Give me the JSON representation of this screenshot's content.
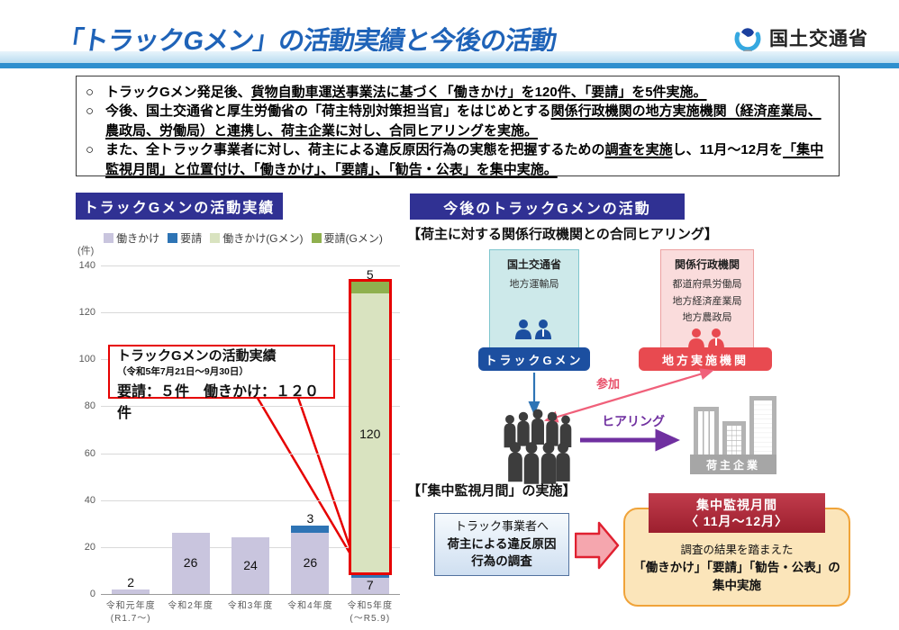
{
  "page": {
    "title": "「トラックGメン」の活動実績と今後の活動",
    "logo_text": "国土交通省"
  },
  "summary": {
    "bullets": [
      {
        "segments": [
          {
            "text": "トラックGメン発足後、",
            "u": false
          },
          {
            "text": "貨物自動車運送事業法に基づく「働きかけ」を120件、「要請」を5件実施。",
            "u": true
          }
        ]
      },
      {
        "segments": [
          {
            "text": "今後、国土交通省と厚生労働省の「荷主特別対策担当官」をはじめとする",
            "u": false
          },
          {
            "text": "関係行政機関の地方実施機関（経済産業局、農政局、労働局）と連携し、荷主企業に対し、合同ヒアリングを実施。",
            "u": true
          }
        ]
      },
      {
        "segments": [
          {
            "text": "また、全トラック事業者に対し、荷主による違反原因行為の実態を把握するための",
            "u": false
          },
          {
            "text": "調査を実施",
            "u": true
          },
          {
            "text": "し、11月～12月を",
            "u": false
          },
          {
            "text": "「集中監視月間」と位置付け、「働きかけ」、「要請」、「勧告・公表」を集中実施。",
            "u": true
          }
        ]
      }
    ]
  },
  "activity": {
    "header": "トラックGメンの活動実績",
    "unit": "(件)",
    "callout": {
      "title": "トラックGメンの活動実績",
      "period": "（令和5年7月21日～9月30日）",
      "stats": "要請：５件　働きかけ：１２０件"
    }
  },
  "chart_data": {
    "type": "bar",
    "stacked": true,
    "title": "トラックGメンの活動実績",
    "ylabel": "(件)",
    "ylim": [
      0,
      140
    ],
    "ytick_step": 20,
    "grid": true,
    "legend_position": "top",
    "categories": [
      {
        "label": "令和元年度",
        "sub": "(R1.7～)"
      },
      {
        "label": "令和2年度",
        "sub": ""
      },
      {
        "label": "令和3年度",
        "sub": ""
      },
      {
        "label": "令和4年度",
        "sub": ""
      },
      {
        "label": "令和5年度",
        "sub": "(～R5.9)"
      }
    ],
    "series": [
      {
        "name": "働きかけ",
        "color": "#c9c5de",
        "values": [
          2,
          26,
          24,
          26,
          7
        ]
      },
      {
        "name": "要請",
        "color": "#2e74b5",
        "values": [
          0,
          0,
          0,
          3,
          1
        ]
      },
      {
        "name": "働きかけ(Gメン)",
        "color": "#d9e3c0",
        "values": [
          0,
          0,
          0,
          0,
          120
        ]
      },
      {
        "name": "要請(Gメン)",
        "color": "#8fb04e",
        "values": [
          0,
          0,
          0,
          0,
          5
        ]
      }
    ],
    "highlight_note": "令和5年度のGメン分（働きかけ120件・要請5件）を赤枠で強調"
  },
  "future": {
    "header": "今後のトラックGメンの活動",
    "joint_hearing_heading": "【荷主に対する関係行政機関との合同ヒアリング】",
    "mlit_box": {
      "title": "国土交通省",
      "items": [
        "地方運輸局"
      ]
    },
    "related_box": {
      "title": "関係行政機関",
      "items": [
        "都道府県労働局",
        "地方経済産業局",
        "地方農政局"
      ]
    },
    "gmen_button": "トラックGメン",
    "regional_button": "地方実施機関",
    "participate_label": "参加",
    "hearing_label": "ヒアリング",
    "shipper_label": "荷主企業",
    "monitoring_heading": "【「集中監視月間」の実施】",
    "survey_box": {
      "line1": "トラック事業者へ",
      "line2": "荷主による違反原因",
      "line3": "行為の調査"
    },
    "monitoring_box": {
      "title_line1": "集中監視月間",
      "title_line2": "〈 11月～12月〉",
      "body_line1": "調査の結果を踏まえた",
      "body_line2": "「働きかけ」「要請」「勧告・公表」の",
      "body_line3": "集中実施"
    }
  },
  "colors": {
    "title_blue": "#1f63b8",
    "badge_navy": "#303193",
    "highlight_red": "#e60000",
    "gmen_blue": "#1c4fa0",
    "regional_red": "#e84a50",
    "hearing_purple": "#7030a0",
    "participate_pink": "#f0607a"
  }
}
